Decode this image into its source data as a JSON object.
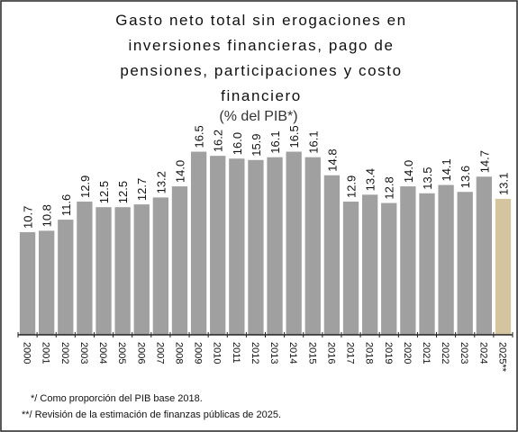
{
  "chart_data": {
    "type": "bar",
    "title": [
      "Gasto neto total sin erogaciones en",
      "inversiones financieras, pago de",
      "pensiones, participaciones y costo",
      "financiero"
    ],
    "subtitle": "(% del PIB*)",
    "categories": [
      "2000",
      "2001",
      "2002",
      "2003",
      "2004",
      "2005",
      "2006",
      "2007",
      "2008",
      "2009",
      "2010",
      "2011",
      "2012",
      "2013",
      "2014",
      "2015",
      "2016",
      "2017",
      "2018",
      "2019",
      "2020",
      "2021",
      "2022",
      "2023",
      "2024",
      "2025**"
    ],
    "values": [
      10.7,
      10.8,
      11.6,
      12.9,
      12.5,
      12.5,
      12.7,
      13.2,
      14.0,
      16.5,
      16.2,
      16.0,
      15.9,
      16.1,
      16.5,
      16.1,
      14.8,
      12.9,
      13.4,
      12.8,
      14.0,
      13.5,
      14.1,
      13.6,
      14.7,
      13.1
    ],
    "value_labels": [
      "10.7",
      "10.8",
      "11.6",
      "12.9",
      "12.5",
      "12.5",
      "12.7",
      "13.2",
      "14.0",
      "16.5",
      "16.2",
      "16.0",
      "15.9",
      "16.1",
      "16.5",
      "16.1",
      "14.8",
      "12.9",
      "13.4",
      "12.8",
      "14.0",
      "13.5",
      "14.1",
      "13.6",
      "14.7",
      "13.1"
    ],
    "colors": [
      "#a0a0a0",
      "#a0a0a0",
      "#a0a0a0",
      "#a0a0a0",
      "#a0a0a0",
      "#a0a0a0",
      "#a0a0a0",
      "#a0a0a0",
      "#a0a0a0",
      "#a0a0a0",
      "#a0a0a0",
      "#a0a0a0",
      "#a0a0a0",
      "#a0a0a0",
      "#a0a0a0",
      "#a0a0a0",
      "#a0a0a0",
      "#a0a0a0",
      "#a0a0a0",
      "#a0a0a0",
      "#a0a0a0",
      "#a0a0a0",
      "#a0a0a0",
      "#a0a0a0",
      "#a0a0a0",
      "#d5c59e"
    ],
    "ylim": [
      3.3,
      19
    ],
    "footnotes": [
      "*/ Como proporción del PIB base 2018.",
      "**/ Revisión de la estimación de finanzas públicas de 2025."
    ]
  }
}
